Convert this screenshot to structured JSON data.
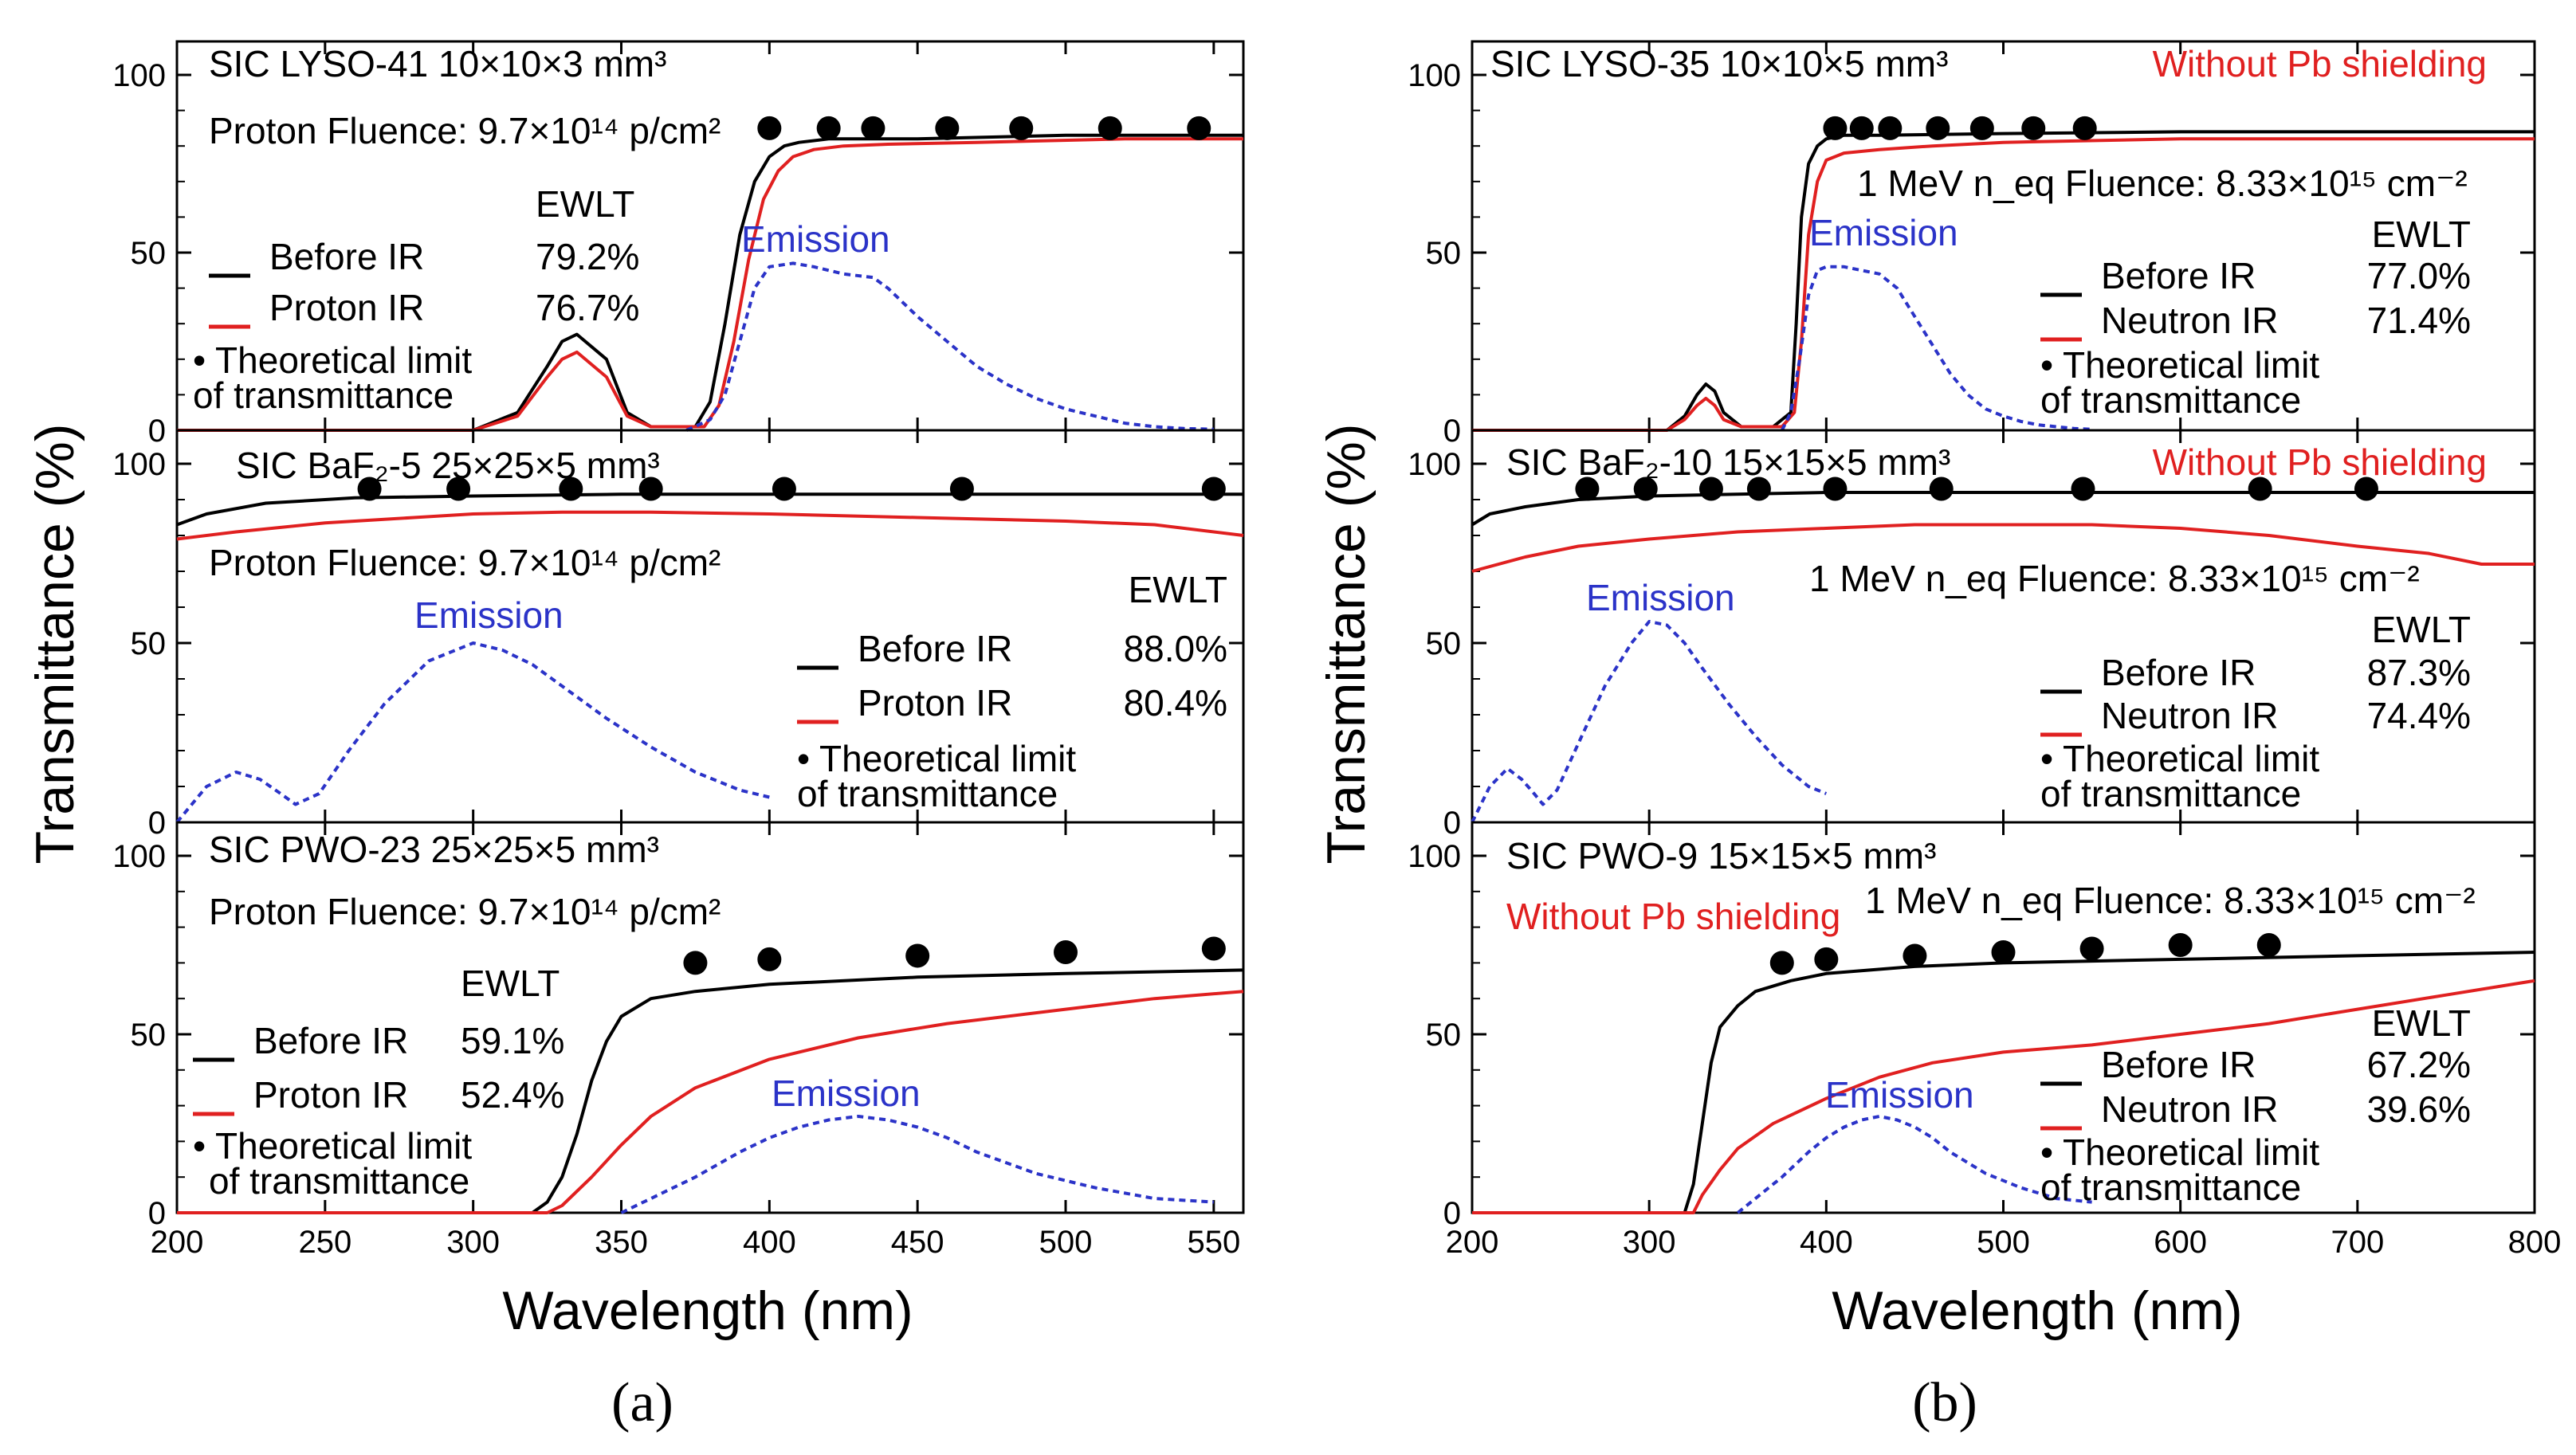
{
  "figure": {
    "panel_labels": [
      "(a)",
      "(b)"
    ],
    "y_axis_label": "Transmittance (%)",
    "x_axis_label": "Wavelength (nm)"
  },
  "colors": {
    "before": "#000000",
    "irradiated": "#e02020",
    "emission": "#2b33c8",
    "annotation_red": "#e02020"
  },
  "chart_data": [
    {
      "type": "line",
      "id": "a1",
      "title": "SIC LYSO-41  10×10×3 mm³",
      "fluence": "Proton Fluence: 9.7×10¹⁴ p/cm²",
      "emission_label": "Emission",
      "ewlt_header": "EWLT",
      "legend": [
        {
          "name": "Before IR",
          "value": "79.2%"
        },
        {
          "name": "Proton IR",
          "value": "76.7%"
        },
        {
          "name": "Theoretical limit of transmittance",
          "value": ""
        }
      ],
      "theory_note": [
        "• Theoretical limit",
        "of transmittance"
      ],
      "xlim": [
        200,
        560
      ],
      "ylim": [
        0,
        100
      ],
      "x_ticks": [
        200,
        250,
        300,
        350,
        400,
        450,
        500,
        550
      ],
      "y_ticks": [
        0,
        50,
        100
      ],
      "series": [
        {
          "name": "Before IR",
          "x": [
            200,
            300,
            315,
            325,
            330,
            335,
            345,
            352,
            360,
            375,
            380,
            385,
            390,
            395,
            400,
            405,
            410,
            420,
            430,
            450,
            500,
            560
          ],
          "y": [
            0,
            0,
            5,
            18,
            25,
            27,
            20,
            5,
            1,
            1,
            8,
            30,
            55,
            70,
            77,
            80,
            81,
            82,
            82,
            82,
            83,
            83
          ]
        },
        {
          "name": "Proton IR",
          "x": [
            200,
            300,
            315,
            325,
            330,
            335,
            345,
            352,
            360,
            378,
            383,
            388,
            393,
            398,
            403,
            408,
            415,
            425,
            440,
            470,
            520,
            560
          ],
          "y": [
            0,
            0,
            4,
            15,
            20,
            22,
            15,
            4,
            1,
            1,
            7,
            25,
            48,
            65,
            73,
            77,
            79,
            80,
            80.5,
            81,
            82,
            82
          ]
        },
        {
          "name": "Emission",
          "x": [
            372,
            380,
            385,
            390,
            395,
            400,
            408,
            415,
            425,
            435,
            440,
            450,
            460,
            470,
            480,
            490,
            500,
            510,
            520,
            530,
            540,
            550
          ],
          "y": [
            0,
            3,
            10,
            25,
            40,
            46,
            47,
            46,
            44,
            43,
            40,
            32,
            25,
            18,
            13,
            9,
            6,
            4,
            2,
            1,
            0.5,
            0.3
          ]
        },
        {
          "name": "Theoretical limit of transmittance",
          "x": [
            400,
            420,
            435,
            460,
            485,
            515,
            545
          ],
          "y": [
            85,
            85,
            85,
            85,
            85,
            85,
            85
          ]
        }
      ]
    },
    {
      "type": "line",
      "id": "a2",
      "title": "SIC BaF₂-5  25×25×5 mm³",
      "fluence": "Proton Fluence: 9.7×10¹⁴ p/cm²",
      "emission_label": "Emission",
      "ewlt_header": "EWLT",
      "legend": [
        {
          "name": "Before IR",
          "value": "88.0%"
        },
        {
          "name": "Proton IR",
          "value": "80.4%"
        },
        {
          "name": "Theoretical limit of transmittance",
          "value": ""
        }
      ],
      "theory_note": [
        "• Theoretical limit",
        "of transmittance"
      ],
      "xlim": [
        200,
        560
      ],
      "ylim": [
        0,
        100
      ],
      "x_ticks": [
        200,
        250,
        300,
        350,
        400,
        450,
        500,
        550
      ],
      "y_ticks": [
        0,
        50,
        100
      ],
      "series": [
        {
          "name": "Before IR",
          "x": [
            200,
            210,
            230,
            260,
            300,
            350,
            400,
            450,
            500,
            560
          ],
          "y": [
            83,
            86,
            89,
            90.5,
            91,
            91.5,
            91.5,
            91.5,
            91.5,
            91.5
          ]
        },
        {
          "name": "Proton IR",
          "x": [
            200,
            220,
            250,
            280,
            300,
            330,
            360,
            400,
            450,
            500,
            530,
            560
          ],
          "y": [
            79,
            81,
            83.5,
            85,
            86,
            86.5,
            86.5,
            86,
            85,
            84,
            83,
            80
          ]
        },
        {
          "name": "Emission",
          "x": [
            200,
            210,
            220,
            228,
            235,
            240,
            248,
            258,
            270,
            285,
            300,
            310,
            320,
            330,
            345,
            360,
            375,
            390,
            400
          ],
          "y": [
            0,
            10,
            14,
            12,
            8,
            5,
            8,
            20,
            33,
            45,
            50,
            48,
            44,
            38,
            29,
            21,
            14,
            9,
            7
          ]
        },
        {
          "name": "Theoretical limit of transmittance",
          "x": [
            265,
            295,
            333,
            360,
            405,
            465,
            550
          ],
          "y": [
            93,
            93,
            93,
            93,
            93,
            93,
            93
          ]
        }
      ]
    },
    {
      "type": "line",
      "id": "a3",
      "title": "SIC PWO-23  25×25×5 mm³",
      "fluence": "Proton Fluence: 9.7×10¹⁴ p/cm²",
      "emission_label": "Emission",
      "ewlt_header": "EWLT",
      "legend": [
        {
          "name": "Before IR",
          "value": "59.1%"
        },
        {
          "name": "Proton IR",
          "value": "52.4%"
        },
        {
          "name": "Theoretical limit of transmittance",
          "value": ""
        }
      ],
      "theory_note": [
        "• Theoretical limit",
        "of transmittance"
      ],
      "xlim": [
        200,
        560
      ],
      "ylim": [
        0,
        100
      ],
      "x_ticks": [
        200,
        250,
        300,
        350,
        400,
        450,
        500,
        550
      ],
      "y_ticks": [
        0,
        50,
        100
      ],
      "series": [
        {
          "name": "Before IR",
          "x": [
            200,
            320,
            325,
            330,
            335,
            340,
            345,
            350,
            360,
            375,
            400,
            450,
            500,
            560
          ],
          "y": [
            0,
            0,
            3,
            10,
            22,
            37,
            48,
            55,
            60,
            62,
            64,
            66,
            67,
            68
          ]
        },
        {
          "name": "Proton IR",
          "x": [
            200,
            325,
            330,
            340,
            350,
            360,
            375,
            400,
            430,
            460,
            500,
            530,
            560
          ],
          "y": [
            0,
            0,
            2,
            10,
            19,
            27,
            35,
            43,
            49,
            53,
            57,
            60,
            62
          ]
        },
        {
          "name": "Emission",
          "x": [
            350,
            360,
            375,
            390,
            400,
            410,
            420,
            430,
            440,
            450,
            460,
            470,
            490,
            510,
            530,
            550
          ],
          "y": [
            0,
            4,
            10,
            17,
            21,
            24,
            26,
            27,
            26,
            24,
            21,
            17,
            11,
            7,
            4,
            3
          ]
        },
        {
          "name": "Theoretical limit of transmittance",
          "x": [
            375,
            400,
            450,
            500,
            550
          ],
          "y": [
            70,
            71,
            72,
            73,
            74
          ]
        }
      ]
    },
    {
      "type": "line",
      "id": "b1",
      "title": "SIC LYSO-35  10×10×5 mm³",
      "shielding": "Without Pb shielding",
      "fluence": "1 MeV n_eq Fluence: 8.33×10¹⁵ cm⁻²",
      "emission_label": "Emission",
      "ewlt_header": "EWLT",
      "legend": [
        {
          "name": "Before IR",
          "value": "77.0%"
        },
        {
          "name": "Neutron IR",
          "value": "71.4%"
        },
        {
          "name": "Theoretical limit of transmittance",
          "value": ""
        }
      ],
      "theory_note": [
        "• Theoretical limit",
        "of transmittance"
      ],
      "xlim": [
        200,
        800
      ],
      "ylim": [
        0,
        100
      ],
      "x_ticks": [
        200,
        300,
        400,
        500,
        600,
        700,
        800
      ],
      "y_ticks": [
        0,
        50,
        100
      ],
      "series": [
        {
          "name": "Before IR",
          "x": [
            200,
            310,
            320,
            327,
            332,
            337,
            342,
            352,
            370,
            380,
            383,
            386,
            390,
            395,
            400,
            410,
            430,
            500,
            600,
            800
          ],
          "y": [
            0,
            0,
            4,
            10,
            13,
            11,
            5,
            1,
            1,
            5,
            30,
            60,
            75,
            80,
            82,
            83,
            83,
            83.5,
            84,
            84
          ]
        },
        {
          "name": "Neutron IR",
          "x": [
            200,
            310,
            320,
            327,
            332,
            337,
            342,
            352,
            375,
            382,
            386,
            390,
            395,
            400,
            410,
            430,
            460,
            500,
            600,
            800
          ],
          "y": [
            0,
            0,
            3,
            7,
            9,
            7,
            3,
            1,
            1,
            5,
            25,
            55,
            70,
            76,
            78,
            79,
            80,
            81,
            82,
            82
          ]
        },
        {
          "name": "Emission",
          "x": [
            375,
            380,
            385,
            390,
            395,
            400,
            410,
            420,
            430,
            440,
            450,
            460,
            470,
            480,
            490,
            500,
            510,
            520,
            530,
            540,
            550
          ],
          "y": [
            0,
            5,
            20,
            38,
            45,
            46,
            46,
            45,
            44,
            40,
            32,
            24,
            16,
            10,
            6,
            4,
            2.5,
            1.5,
            1,
            0.5,
            0.3
          ]
        },
        {
          "name": "Theoretical limit of transmittance",
          "x": [
            405,
            420,
            436,
            463,
            488,
            517,
            546
          ],
          "y": [
            85,
            85,
            85,
            85,
            85,
            85,
            85
          ]
        }
      ]
    },
    {
      "type": "line",
      "id": "b2",
      "title": "SIC BaF₂-10  15×15×5 mm³",
      "shielding": "Without Pb shielding",
      "fluence": "1 MeV n_eq Fluence: 8.33×10¹⁵ cm⁻²",
      "emission_label": "Emission",
      "ewlt_header": "EWLT",
      "legend": [
        {
          "name": "Before IR",
          "value": "87.3%"
        },
        {
          "name": "Neutron IR",
          "value": "74.4%"
        },
        {
          "name": "Theoretical limit of transmittance",
          "value": ""
        }
      ],
      "theory_note": [
        "• Theoretical limit",
        "of transmittance"
      ],
      "xlim": [
        200,
        800
      ],
      "ylim": [
        0,
        100
      ],
      "x_ticks": [
        200,
        300,
        400,
        500,
        600,
        700,
        800
      ],
      "y_ticks": [
        0,
        50,
        100
      ],
      "series": [
        {
          "name": "Before IR",
          "x": [
            200,
            210,
            230,
            260,
            300,
            400,
            500,
            600,
            700,
            800
          ],
          "y": [
            83,
            86,
            88,
            90,
            91,
            92,
            92,
            92,
            92,
            92
          ]
        },
        {
          "name": "Neutron IR",
          "x": [
            200,
            230,
            260,
            300,
            350,
            400,
            450,
            500,
            550,
            600,
            650,
            700,
            740,
            770,
            800
          ],
          "y": [
            70,
            74,
            77,
            79,
            81,
            82,
            83,
            83,
            83,
            82,
            80,
            77,
            75,
            72,
            72
          ]
        },
        {
          "name": "Emission",
          "x": [
            200,
            210,
            220,
            228,
            235,
            240,
            248,
            260,
            275,
            290,
            300,
            310,
            320,
            330,
            345,
            360,
            375,
            390,
            400
          ],
          "y": [
            0,
            10,
            15,
            12,
            8,
            5,
            9,
            22,
            38,
            50,
            56,
            55,
            50,
            43,
            33,
            24,
            16,
            10,
            8
          ]
        },
        {
          "name": "Theoretical limit of transmittance",
          "x": [
            265,
            298,
            335,
            362,
            405,
            465,
            545,
            645,
            705
          ],
          "y": [
            93,
            93,
            93,
            93,
            93,
            93,
            93,
            93,
            93
          ]
        }
      ]
    },
    {
      "type": "line",
      "id": "b3",
      "title": "SIC PWO-9  15×15×5 mm³",
      "shielding": "Without Pb shielding",
      "fluence": "1 MeV n_eq Fluence: 8.33×10¹⁵ cm⁻²",
      "emission_label": "Emission",
      "ewlt_header": "EWLT",
      "legend": [
        {
          "name": "Before IR",
          "value": "67.2%"
        },
        {
          "name": "Neutron IR",
          "value": "39.6%"
        },
        {
          "name": "Theoretical limit of transmittance",
          "value": ""
        }
      ],
      "theory_note": [
        "• Theoretical limit",
        "of transmittance"
      ],
      "xlim": [
        200,
        800
      ],
      "ylim": [
        0,
        100
      ],
      "x_ticks": [
        200,
        300,
        400,
        500,
        600,
        700,
        800
      ],
      "y_ticks": [
        0,
        50,
        100
      ],
      "series": [
        {
          "name": "Before IR",
          "x": [
            200,
            320,
            325,
            330,
            335,
            340,
            350,
            360,
            380,
            400,
            450,
            500,
            600,
            700,
            800
          ],
          "y": [
            0,
            0,
            8,
            25,
            42,
            52,
            58,
            62,
            65,
            67,
            69,
            70,
            71,
            72,
            73
          ]
        },
        {
          "name": "Neutron IR",
          "x": [
            200,
            325,
            330,
            340,
            350,
            370,
            400,
            430,
            460,
            500,
            550,
            600,
            650,
            700,
            750,
            800
          ],
          "y": [
            0,
            0,
            5,
            12,
            18,
            25,
            32,
            38,
            42,
            45,
            47,
            50,
            53,
            57,
            61,
            65
          ]
        },
        {
          "name": "Emission",
          "x": [
            350,
            360,
            375,
            390,
            400,
            410,
            420,
            430,
            440,
            450,
            460,
            470,
            490,
            510,
            530,
            550
          ],
          "y": [
            0,
            4,
            10,
            17,
            21,
            24,
            26,
            27,
            26,
            24,
            21,
            17,
            11,
            7,
            4,
            3
          ]
        },
        {
          "name": "Theoretical limit of transmittance",
          "x": [
            375,
            400,
            450,
            500,
            550,
            600,
            650
          ],
          "y": [
            70,
            71,
            72,
            73,
            74,
            75,
            75
          ]
        }
      ]
    }
  ]
}
